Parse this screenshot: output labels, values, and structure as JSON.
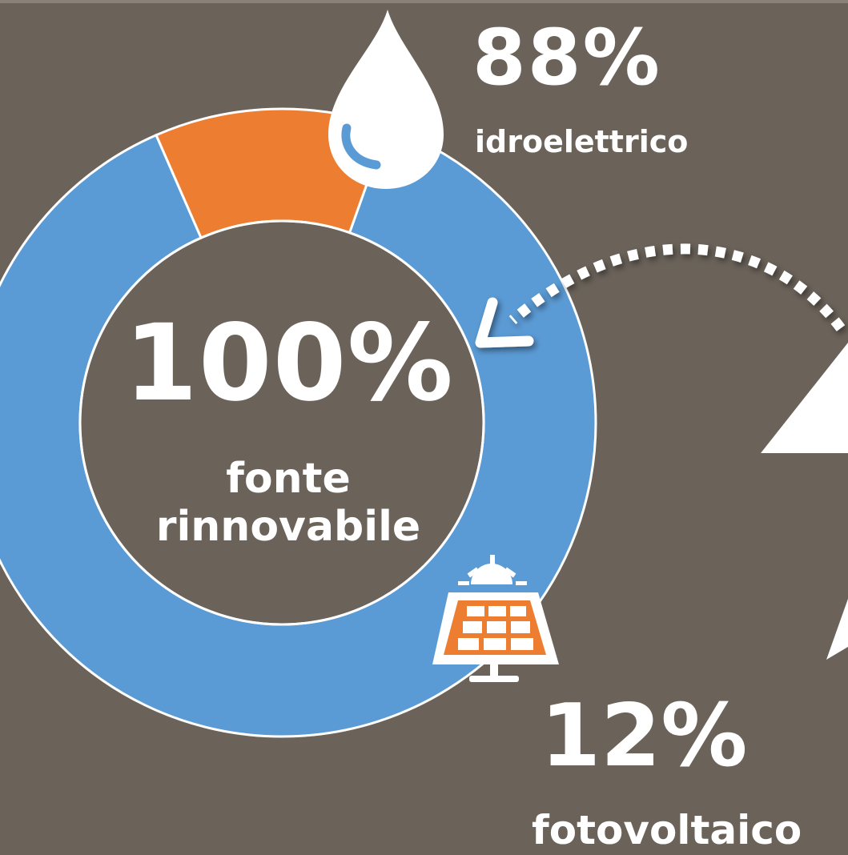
{
  "center": {
    "value": "100%",
    "label": "fonte\nrinnovabile"
  },
  "annotations": {
    "hydro_value": "88%",
    "hydro_label": "idroelettrico",
    "pv_value": "12%",
    "pv_label": "fotovoltaico"
  },
  "icons": {
    "hydro": "water-drop-icon",
    "pv": "solar-panel-icon",
    "arrow": "dotted-curved-arrow-icon",
    "lightning": "lightning-bolt-icon"
  },
  "colors": {
    "background": "#6b635a",
    "hydro": "#5b9bd5",
    "pv": "#ed7d31",
    "stroke": "#ffffff"
  },
  "chart_data": {
    "type": "pie",
    "categories": [
      "idroelettrico",
      "fotovoltaico"
    ],
    "values": [
      88,
      12
    ],
    "title": "",
    "legend": "none"
  }
}
